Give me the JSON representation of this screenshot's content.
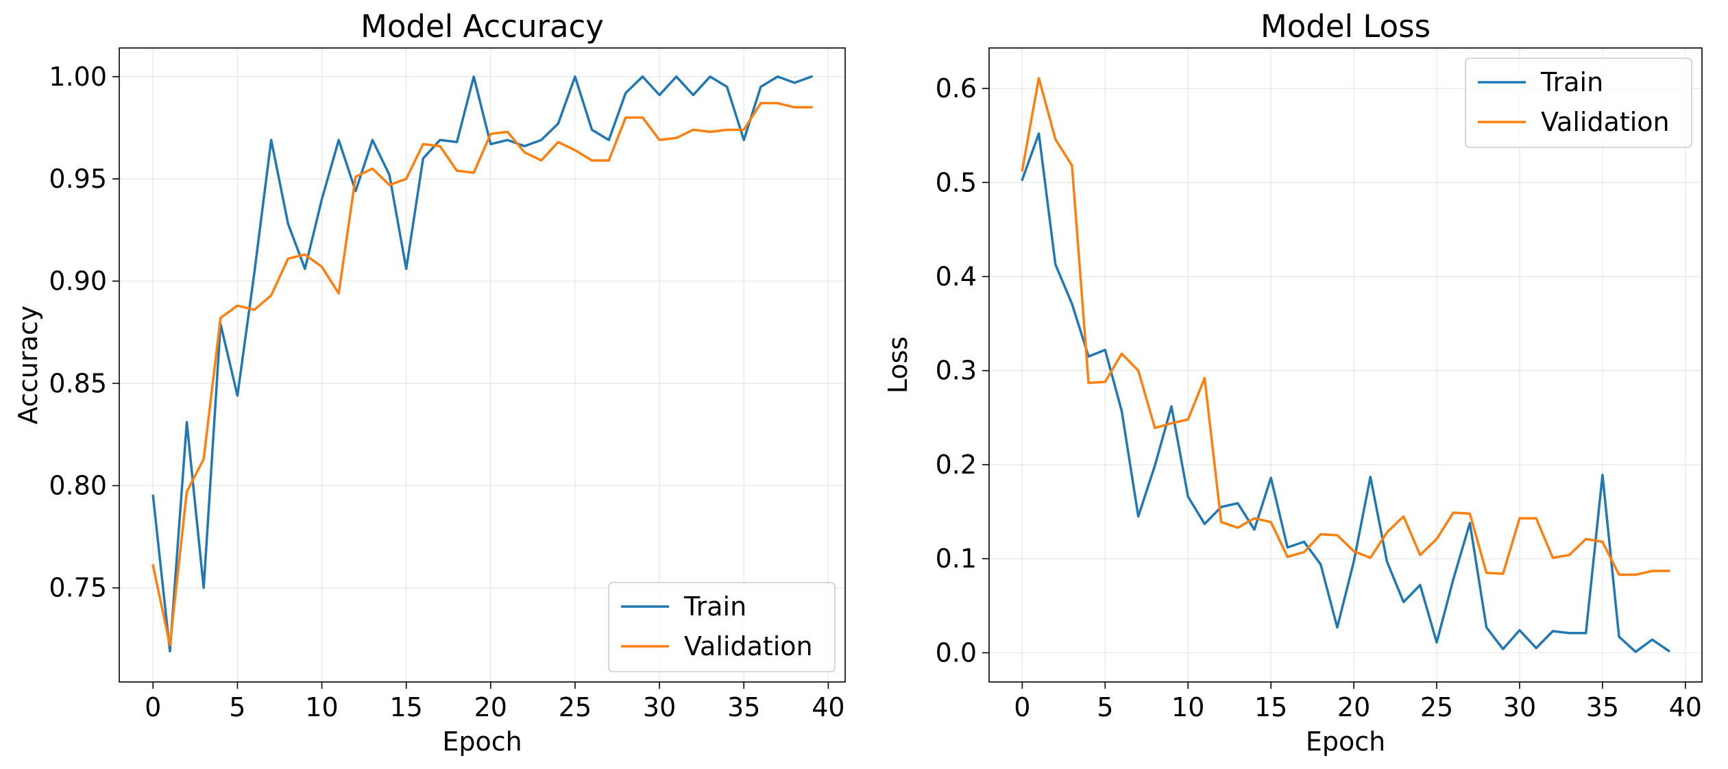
{
  "colors": {
    "train": "#1f77b4",
    "validation": "#ff7f0e"
  },
  "chart_data": [
    {
      "type": "line",
      "title": "Model Accuracy",
      "xlabel": "Epoch",
      "ylabel": "Accuracy",
      "xlim": [
        -2,
        41
      ],
      "ylim": [
        0.704,
        1.014
      ],
      "xticks": [
        0,
        5,
        10,
        15,
        20,
        25,
        30,
        35,
        40
      ],
      "xtick_labels": [
        "0",
        "5",
        "10",
        "15",
        "20",
        "25",
        "30",
        "35",
        "40"
      ],
      "yticks": [
        0.75,
        0.8,
        0.85,
        0.9,
        0.95,
        1.0
      ],
      "ytick_labels": [
        "0.75",
        "0.80",
        "0.85",
        "0.90",
        "0.95",
        "1.00"
      ],
      "grid": true,
      "legend": "lower-right",
      "x": [
        0,
        1,
        2,
        3,
        4,
        5,
        6,
        7,
        8,
        9,
        10,
        11,
        12,
        13,
        14,
        15,
        16,
        17,
        18,
        19,
        20,
        21,
        22,
        23,
        24,
        25,
        26,
        27,
        28,
        29,
        30,
        31,
        32,
        33,
        34,
        35,
        36,
        37,
        38,
        39
      ],
      "series": [
        {
          "name": "Train",
          "color_key": "train",
          "values": [
            0.795,
            0.719,
            0.831,
            0.75,
            0.879,
            0.844,
            0.904,
            0.969,
            0.928,
            0.906,
            0.94,
            0.969,
            0.944,
            0.969,
            0.952,
            0.906,
            0.96,
            0.969,
            0.968,
            1.0,
            0.967,
            0.969,
            0.966,
            0.969,
            0.977,
            1.0,
            0.974,
            0.969,
            0.992,
            1.0,
            0.991,
            1.0,
            0.991,
            1.0,
            0.995,
            0.969,
            0.995,
            1.0,
            0.997,
            1.0
          ]
        },
        {
          "name": "Validation",
          "color_key": "validation",
          "values": [
            0.761,
            0.722,
            0.797,
            0.813,
            0.882,
            0.888,
            0.886,
            0.893,
            0.911,
            0.913,
            0.907,
            0.894,
            0.951,
            0.955,
            0.947,
            0.95,
            0.967,
            0.966,
            0.954,
            0.953,
            0.972,
            0.973,
            0.963,
            0.959,
            0.968,
            0.964,
            0.959,
            0.959,
            0.98,
            0.98,
            0.969,
            0.97,
            0.974,
            0.973,
            0.974,
            0.974,
            0.987,
            0.987,
            0.985,
            0.985
          ]
        }
      ]
    },
    {
      "type": "line",
      "title": "Model Loss",
      "xlabel": "Epoch",
      "ylabel": "Loss",
      "xlim": [
        -2,
        41
      ],
      "ylim": [
        -0.031,
        0.643
      ],
      "xticks": [
        0,
        5,
        10,
        15,
        20,
        25,
        30,
        35,
        40
      ],
      "xtick_labels": [
        "0",
        "5",
        "10",
        "15",
        "20",
        "25",
        "30",
        "35",
        "40"
      ],
      "yticks": [
        0.0,
        0.1,
        0.2,
        0.3,
        0.4,
        0.5,
        0.6
      ],
      "ytick_labels": [
        "0.0",
        "0.1",
        "0.2",
        "0.3",
        "0.4",
        "0.5",
        "0.6"
      ],
      "grid": true,
      "legend": "upper-right",
      "x": [
        0,
        1,
        2,
        3,
        4,
        5,
        6,
        7,
        8,
        9,
        10,
        11,
        12,
        13,
        14,
        15,
        16,
        17,
        18,
        19,
        20,
        21,
        22,
        23,
        24,
        25,
        26,
        27,
        28,
        29,
        30,
        31,
        32,
        33,
        34,
        35,
        36,
        37,
        38,
        39
      ],
      "series": [
        {
          "name": "Train",
          "color_key": "train",
          "values": [
            0.503,
            0.552,
            0.413,
            0.371,
            0.315,
            0.322,
            0.257,
            0.145,
            0.199,
            0.262,
            0.166,
            0.137,
            0.155,
            0.159,
            0.131,
            0.186,
            0.112,
            0.118,
            0.094,
            0.027,
            0.097,
            0.187,
            0.097,
            0.054,
            0.072,
            0.011,
            0.078,
            0.138,
            0.027,
            0.004,
            0.024,
            0.005,
            0.023,
            0.021,
            0.021,
            0.189,
            0.017,
            0.001,
            0.014,
            0.002
          ]
        },
        {
          "name": "Validation",
          "color_key": "validation",
          "values": [
            0.513,
            0.611,
            0.546,
            0.518,
            0.287,
            0.288,
            0.318,
            0.3,
            0.239,
            0.244,
            0.248,
            0.292,
            0.139,
            0.133,
            0.143,
            0.139,
            0.102,
            0.107,
            0.126,
            0.125,
            0.108,
            0.101,
            0.128,
            0.145,
            0.104,
            0.121,
            0.149,
            0.148,
            0.085,
            0.084,
            0.143,
            0.143,
            0.101,
            0.104,
            0.121,
            0.118,
            0.083,
            0.083,
            0.087,
            0.087
          ]
        }
      ]
    }
  ]
}
